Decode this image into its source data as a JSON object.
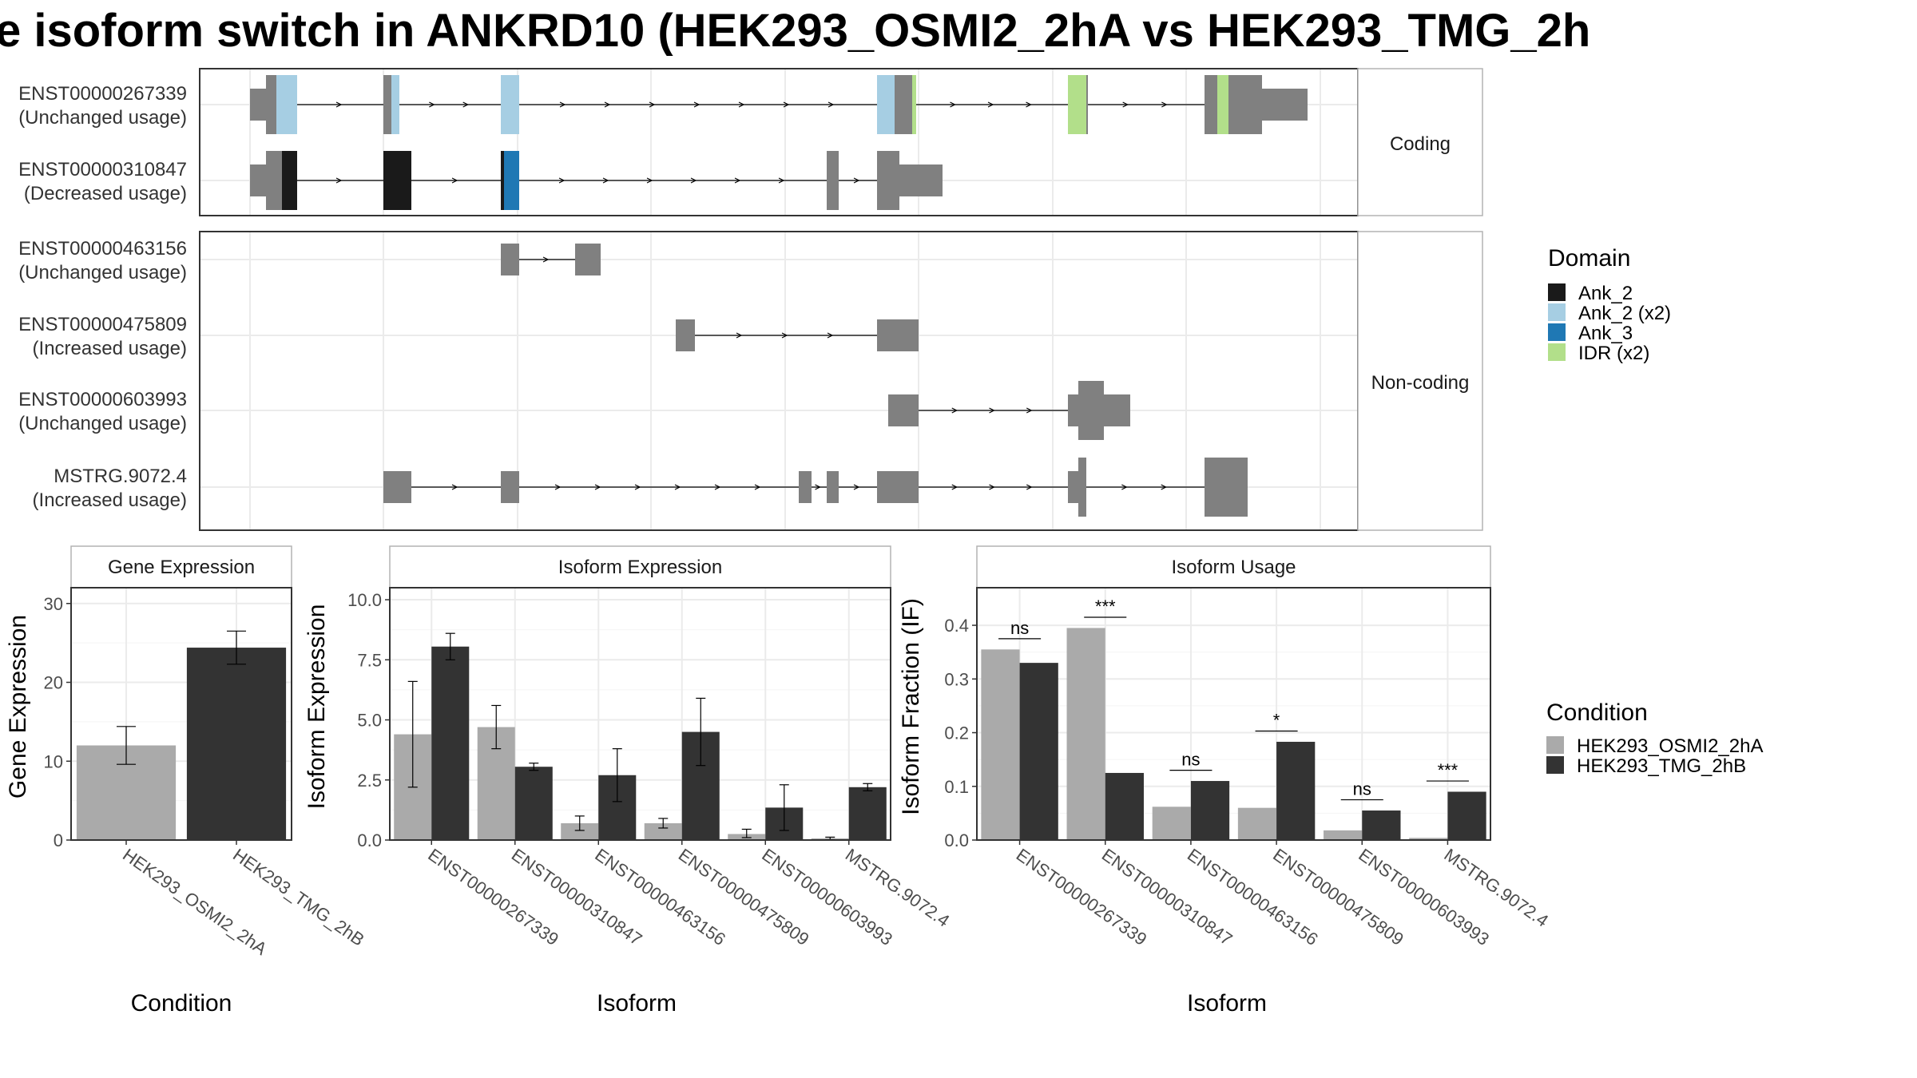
{
  "title": "e isoform switch in ANKRD10 (HEK293_OSMI2_2hA vs HEK293_TMG_2h",
  "colors": {
    "exon": "#808080",
    "Ank_2": "#1a1a1a",
    "Ank_2 (x2)": "#a6cee3",
    "Ank_3": "#1f78b4",
    "IDR (x2)": "#b2df8a",
    "cond1": "#aaaaaa",
    "cond2": "#333333"
  },
  "structure": {
    "coding_label": "Coding",
    "noncoding_label": "Non-coding",
    "transcripts": [
      {
        "id": "ENST00000267339",
        "usage": "(Unchanged usage)",
        "group": "coding"
      },
      {
        "id": "ENST00000310847",
        "usage": "(Decreased usage)",
        "group": "coding"
      },
      {
        "id": "ENST00000463156",
        "usage": "(Unchanged usage)",
        "group": "noncoding"
      },
      {
        "id": "ENST00000475809",
        "usage": "(Increased usage)",
        "group": "noncoding"
      },
      {
        "id": "ENST00000603993",
        "usage": "(Unchanged usage)",
        "group": "noncoding"
      },
      {
        "id": "MSTRG.9072.4",
        "usage": "(Increased usage)",
        "group": "noncoding"
      }
    ]
  },
  "legend_domain": {
    "title": "Domain",
    "items": [
      {
        "label": "Ank_2",
        "color": "#1a1a1a"
      },
      {
        "label": "Ank_2 (x2)",
        "color": "#a6cee3"
      },
      {
        "label": "Ank_3",
        "color": "#1f78b4"
      },
      {
        "label": "IDR (x2)",
        "color": "#b2df8a"
      }
    ]
  },
  "legend_condition": {
    "title": "Condition",
    "items": [
      {
        "label": "HEK293_OSMI2_2hA",
        "color": "#aaaaaa"
      },
      {
        "label": "HEK293_TMG_2hB",
        "color": "#333333"
      }
    ]
  },
  "chart_data": [
    {
      "type": "bar",
      "title": "Gene Expression",
      "xlabel": "Condition",
      "ylabel": "Gene Expression",
      "ylim": [
        0,
        32
      ],
      "yticks": [
        0,
        10,
        20,
        30
      ],
      "categories": [
        "HEK293_OSMI2_2hA",
        "HEK293_TMG_2hB"
      ],
      "values": [
        12.0,
        24.4
      ],
      "errors": [
        [
          9.6,
          14.4
        ],
        [
          22.3,
          26.5
        ]
      ],
      "colors": [
        "#aaaaaa",
        "#333333"
      ]
    },
    {
      "type": "bar",
      "title": "Isoform Expression",
      "xlabel": "Isoform",
      "ylabel": "Isoform Expression",
      "ylim": [
        0,
        10.5
      ],
      "yticks": [
        0.0,
        2.5,
        5.0,
        7.5,
        10.0
      ],
      "ytick_labels": [
        "0.0",
        "2.5",
        "5.0",
        "7.5",
        "10.0"
      ],
      "categories": [
        "ENST00000267339",
        "ENST00000310847",
        "ENST00000463156",
        "ENST00000475809",
        "ENST00000603993",
        "MSTRG.9072.4"
      ],
      "series": [
        {
          "name": "HEK293_OSMI2_2hA",
          "values": [
            4.4,
            4.7,
            0.7,
            0.7,
            0.25,
            0.07
          ],
          "errors": [
            [
              2.2,
              6.6
            ],
            [
              3.8,
              5.6
            ],
            [
              0.4,
              1.0
            ],
            [
              0.5,
              0.9
            ],
            [
              0.1,
              0.45
            ],
            [
              0.02,
              0.12
            ]
          ]
        },
        {
          "name": "HEK293_TMG_2hB",
          "values": [
            8.05,
            3.05,
            2.7,
            4.5,
            1.35,
            2.2
          ],
          "errors": [
            [
              7.5,
              8.6
            ],
            [
              2.9,
              3.2
            ],
            [
              1.6,
              3.8
            ],
            [
              3.1,
              5.9
            ],
            [
              0.4,
              2.3
            ],
            [
              2.05,
              2.35
            ]
          ]
        }
      ]
    },
    {
      "type": "bar",
      "title": "Isoform Usage",
      "xlabel": "Isoform",
      "ylabel": "Isoform Fraction (IF)",
      "ylim": [
        0,
        0.47
      ],
      "yticks": [
        0.0,
        0.1,
        0.2,
        0.3,
        0.4
      ],
      "ytick_labels": [
        "0.0",
        "0.1",
        "0.2",
        "0.3",
        "0.4"
      ],
      "categories": [
        "ENST00000267339",
        "ENST00000310847",
        "ENST00000463156",
        "ENST00000475809",
        "ENST00000603993",
        "MSTRG.9072.4"
      ],
      "series": [
        {
          "name": "HEK293_OSMI2_2hA",
          "values": [
            0.355,
            0.395,
            0.062,
            0.06,
            0.018,
            0.004
          ]
        },
        {
          "name": "HEK293_TMG_2hB",
          "values": [
            0.33,
            0.125,
            0.11,
            0.183,
            0.055,
            0.09
          ]
        }
      ],
      "significance": [
        {
          "category": "ENST00000267339",
          "label": "ns",
          "y": 0.375
        },
        {
          "category": "ENST00000310847",
          "label": "***",
          "y": 0.415
        },
        {
          "category": "ENST00000463156",
          "label": "ns",
          "y": 0.13
        },
        {
          "category": "ENST00000475809",
          "label": "*",
          "y": 0.203
        },
        {
          "category": "ENST00000603993",
          "label": "ns",
          "y": 0.075
        },
        {
          "category": "MSTRG.9072.4",
          "label": "***",
          "y": 0.11
        }
      ]
    }
  ]
}
